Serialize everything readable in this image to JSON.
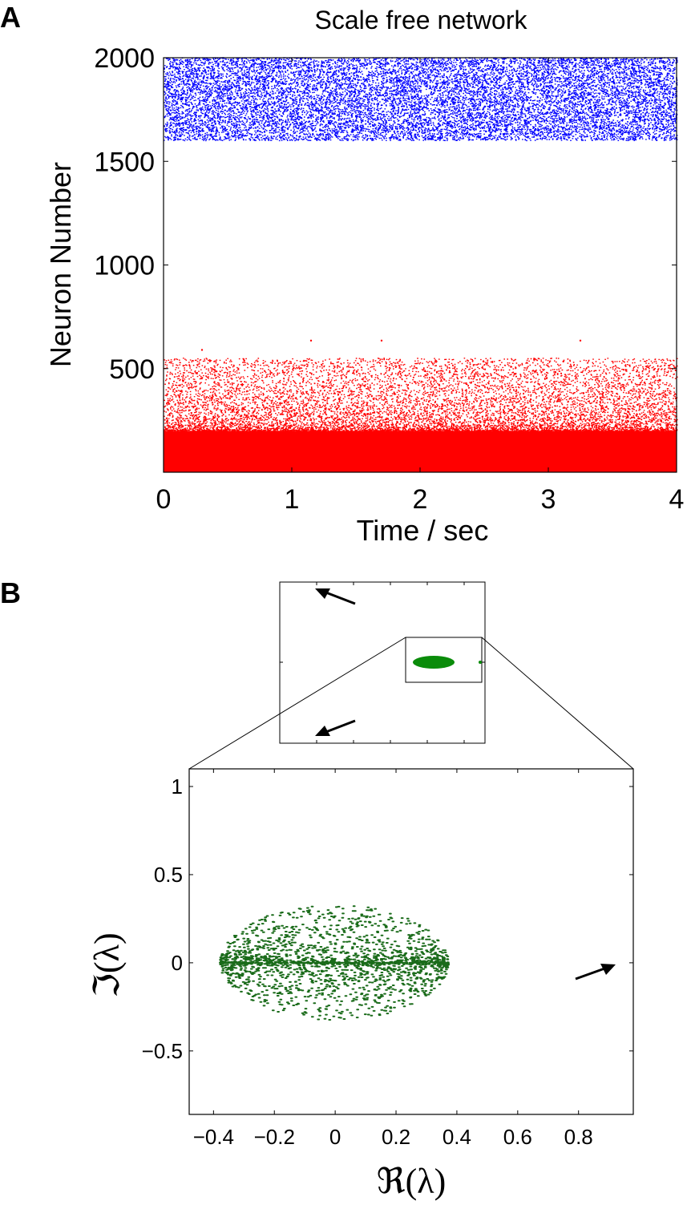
{
  "panels": {
    "a_label": "A",
    "b_label": "B"
  },
  "colors": {
    "excitatory": "#0000ff",
    "inhibitory": "#ff0000",
    "eigen": "#1a6b1a",
    "eigen_inset": "#0a8c0a",
    "axis": "#000000"
  },
  "chart_data": [
    {
      "type": "scatter",
      "title": "Scale free network",
      "xlabel": "Time / sec",
      "ylabel": "Neuron Number",
      "xlim": [
        0,
        4
      ],
      "ylim": [
        0,
        2000
      ],
      "xticks": [
        "0",
        "1",
        "2",
        "3",
        "4"
      ],
      "yticks": [
        "500",
        "1000",
        "1500",
        "2000"
      ],
      "xtick_values": [
        0,
        1,
        2,
        3,
        4
      ],
      "ytick_values": [
        500,
        1000,
        1500,
        2000
      ],
      "series": [
        {
          "neurons": [
            1600,
            2000
          ],
          "description_density": "dense",
          "color_key": "excitatory"
        },
        {
          "neurons": [
            0,
            550
          ],
          "description_density": "dense near 0, sparse toward 550",
          "color_key": "inhibitory"
        }
      ],
      "outliers": [
        {
          "x": 0.3,
          "y": 590
        },
        {
          "x": 1.15,
          "y": 635
        },
        {
          "x": 1.7,
          "y": 635
        },
        {
          "x": 3.25,
          "y": 635
        }
      ]
    },
    {
      "type": "scatter",
      "xlabel": "ℜ(λ)",
      "ylabel": "ℑ(λ)",
      "xlim": [
        -0.48,
        0.98
      ],
      "ylim": [
        -0.86,
        1.1
      ],
      "xticks": [
        "−0.4",
        "−0.2",
        "0",
        "0.2",
        "0.4",
        "0.6",
        "0.8"
      ],
      "xtick_values": [
        -0.4,
        -0.2,
        0,
        0.2,
        0.4,
        0.6,
        0.8
      ],
      "yticks": [
        "−0.5",
        "0",
        "0.5",
        "1"
      ],
      "ytick_values": [
        -0.5,
        0,
        0.5,
        1
      ],
      "eigen_cloud": {
        "real_range": [
          -0.38,
          0.37
        ],
        "imag_max": 0.33,
        "center": 0.0
      },
      "inset": {
        "shows": "zoomed-out eigenvalue spectrum with arrows"
      }
    }
  ]
}
